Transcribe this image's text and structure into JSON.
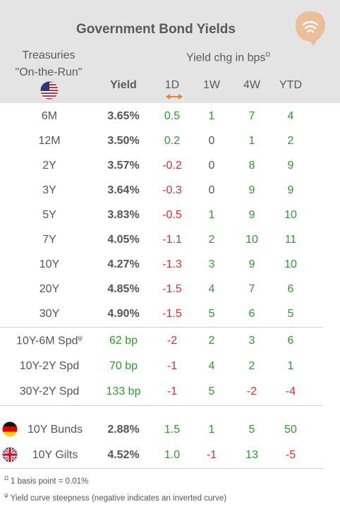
{
  "title": "Government Bond Yields",
  "header": {
    "treasuries_line1": "Treasuries",
    "treasuries_line2": "\"On-the-Run\"",
    "yield_chg": "Yield chg in bps",
    "yield_chg_sup": "Ω",
    "columns": {
      "yield": "Yield",
      "d1": "1D",
      "w1": "1W",
      "w4": "4W",
      "ytd": "YTD"
    }
  },
  "colors": {
    "positive": "#2e9a2e",
    "negative": "#cc3333",
    "header_bg": "#e4e4e4",
    "accent": "#e8823a"
  },
  "treasuries": [
    {
      "label": "6M",
      "yield": "3.65%",
      "d1": "0.5",
      "w1": "1",
      "w4": "7",
      "ytd": "4"
    },
    {
      "label": "12M",
      "yield": "3.50%",
      "d1": "0.2",
      "w1": "0",
      "w4": "1",
      "ytd": "2"
    },
    {
      "label": "2Y",
      "yield": "3.57%",
      "d1": "-0.2",
      "w1": "0",
      "w4": "8",
      "ytd": "9"
    },
    {
      "label": "3Y",
      "yield": "3.64%",
      "d1": "-0.3",
      "w1": "0",
      "w4": "9",
      "ytd": "9"
    },
    {
      "label": "5Y",
      "yield": "3.83%",
      "d1": "-0.5",
      "w1": "1",
      "w4": "9",
      "ytd": "10"
    },
    {
      "label": "7Y",
      "yield": "4.05%",
      "d1": "-1.1",
      "w1": "2",
      "w4": "10",
      "ytd": "11"
    },
    {
      "label": "10Y",
      "yield": "4.27%",
      "d1": "-1.3",
      "w1": "3",
      "w4": "9",
      "ytd": "10"
    },
    {
      "label": "20Y",
      "yield": "4.85%",
      "d1": "-1.5",
      "w1": "4",
      "w4": "7",
      "ytd": "6"
    },
    {
      "label": "30Y",
      "yield": "4.90%",
      "d1": "-1.5",
      "w1": "5",
      "w4": "6",
      "ytd": "5"
    }
  ],
  "spreads": [
    {
      "label": "10Y-6M Spd",
      "sup": "ψ",
      "yield": "62 bp",
      "d1": "-2",
      "w1": "2",
      "w4": "3",
      "ytd": "6"
    },
    {
      "label": "10Y-2Y Spd",
      "sup": "",
      "yield": "70 bp",
      "d1": "-1",
      "w1": "4",
      "w4": "2",
      "ytd": "1"
    },
    {
      "label": "30Y-2Y Spd",
      "sup": "",
      "yield": "133 bp",
      "d1": "-1",
      "w1": "5",
      "w4": "-2",
      "ytd": "-4"
    }
  ],
  "international": [
    {
      "label": "10Y Bunds",
      "flag": "germany-flag-icon",
      "yield": "2.88%",
      "d1": "1.5",
      "w1": "1",
      "w4": "5",
      "ytd": "50"
    },
    {
      "label": "10Y Gilts",
      "flag": "uk-flag-icon",
      "yield": "4.52%",
      "d1": "1.0",
      "w1": "-1",
      "w4": "13",
      "ytd": "-5"
    }
  ],
  "footnotes": [
    {
      "symbol": "Ω",
      "text": "1 basis point = 0.01%"
    },
    {
      "symbol": "ψ",
      "text": "Yield curve steepness (negative indicates an inverted curve)"
    }
  ]
}
